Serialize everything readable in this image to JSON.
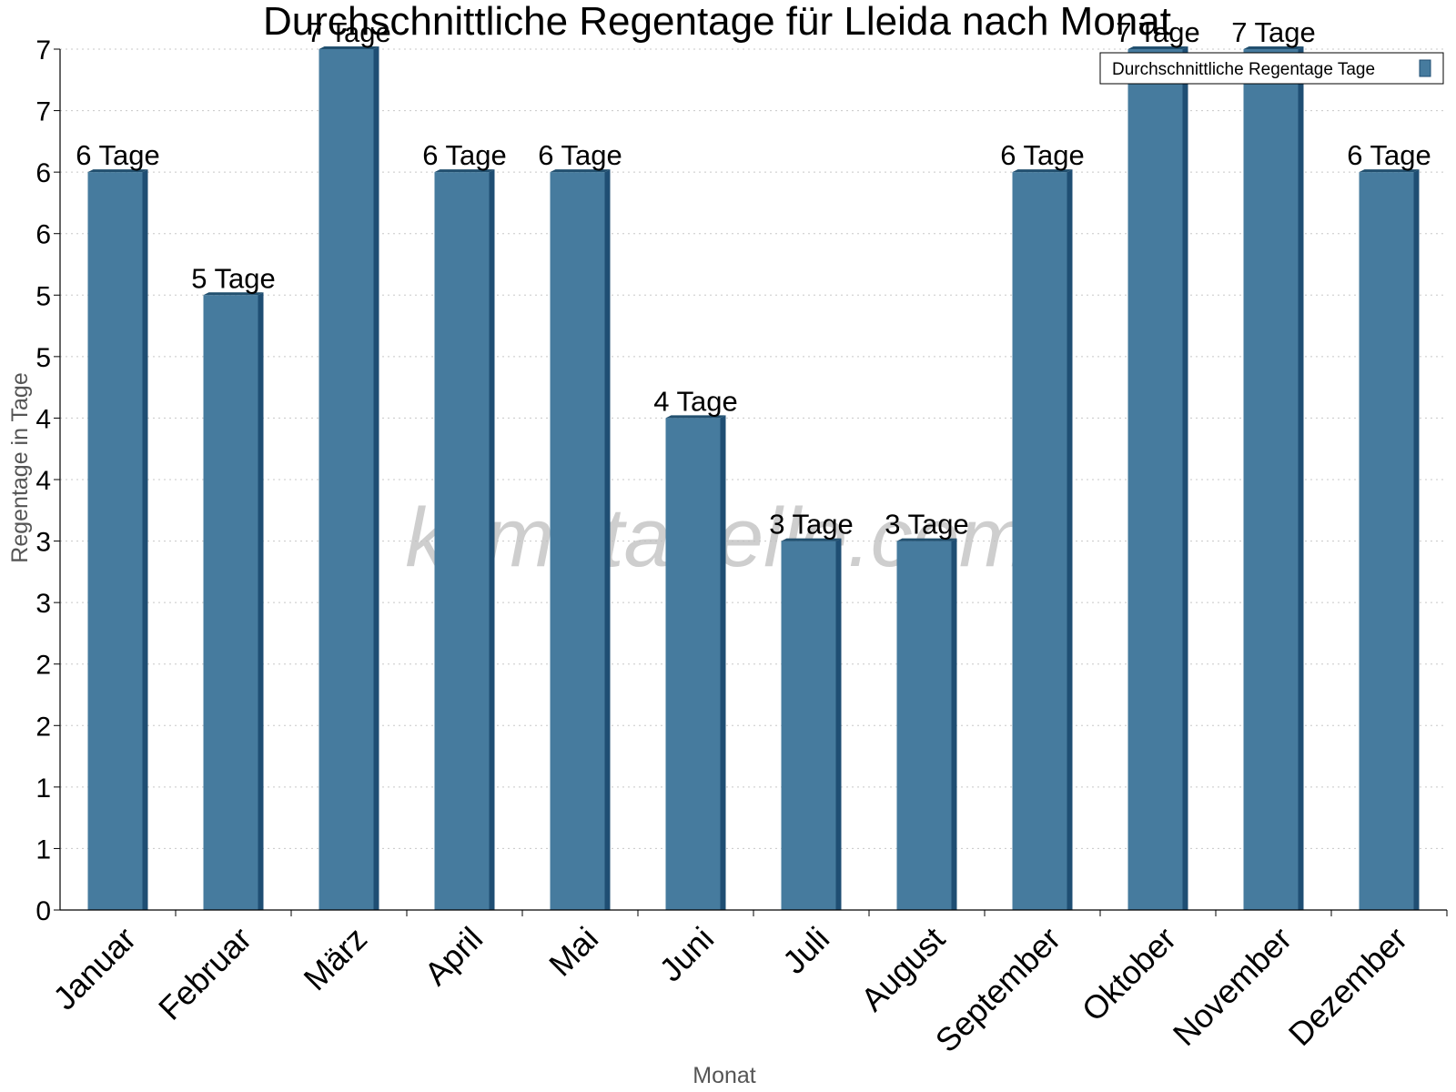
{
  "watermark": "klimatabelle.com",
  "colors": {
    "bar_front": "#467b9e",
    "bar_side": "#1f4e73",
    "bar_top": "#22506f",
    "grid": "#c8c8c8"
  },
  "chart_data": {
    "type": "bar",
    "title": "Durchschnittliche Regentage für Lleida nach Monat",
    "xlabel": "Monat",
    "ylabel": "Regentage in Tage",
    "categories": [
      "Januar",
      "Februar",
      "März",
      "April",
      "Mai",
      "Juni",
      "Juli",
      "August",
      "September",
      "Oktober",
      "November",
      "Dezember"
    ],
    "series": [
      {
        "name": "Durchschnittliche Regentage Tage",
        "values": [
          6,
          5,
          7,
          6,
          6,
          4,
          3,
          3,
          6,
          7,
          7,
          6
        ],
        "labels": [
          "6 Tage",
          "5 Tage",
          "7 Tage",
          "6 Tage",
          "6 Tage",
          "4 Tage",
          "3 Tage",
          "3 Tage",
          "6 Tage",
          "7 Tage",
          "7 Tage",
          "6 Tage"
        ]
      }
    ],
    "ylim": [
      0,
      7
    ],
    "yticks": [
      "0",
      "1",
      "1",
      "2",
      "2",
      "3",
      "3",
      "4",
      "4",
      "5",
      "5",
      "6",
      "6",
      "7",
      "7"
    ],
    "grid": true,
    "legend_position": "top-right"
  }
}
